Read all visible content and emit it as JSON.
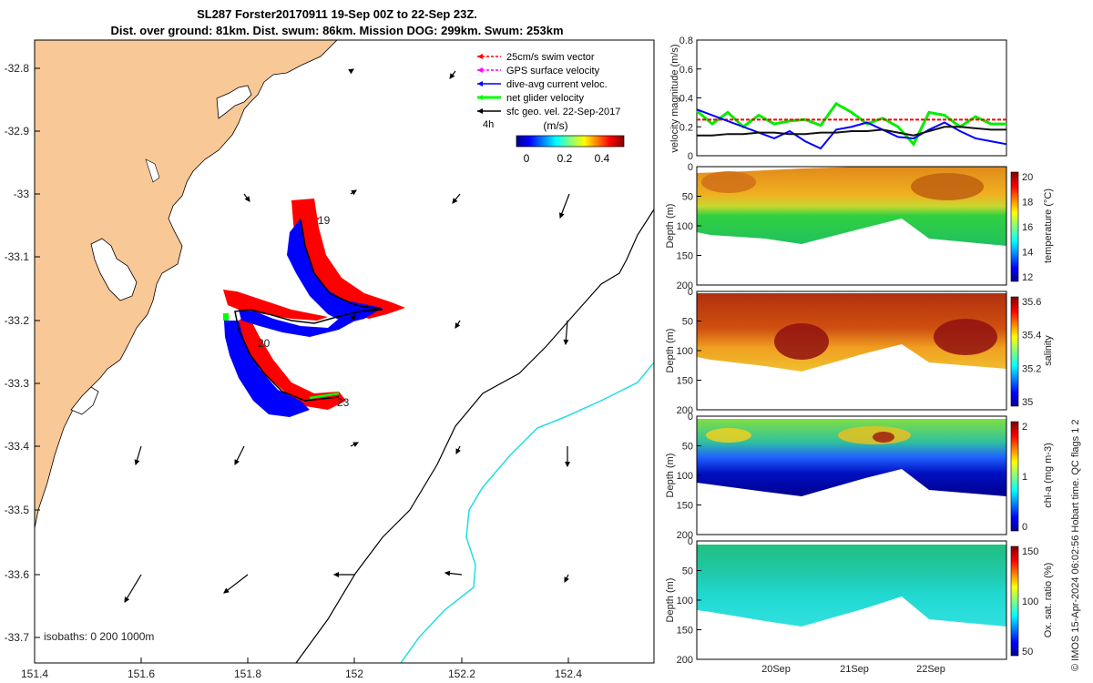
{
  "header": {
    "title_line1": "SL287 Forster20170911 19-Sep 00Z to 22-Sep 23Z.",
    "title_line2": "Dist. over ground: 81km. Dist. swum: 86km. Mission DOG: 299km. Swum: 253km"
  },
  "map": {
    "xticks": [
      "151.4",
      "151.6",
      "151.8",
      "152",
      "152.2",
      "152.4"
    ],
    "yticks": [
      "-32.8",
      "-32.9",
      "-33",
      "-33.1",
      "-33.2",
      "-33.3",
      "-33.4",
      "-33.5",
      "-33.6",
      "-33.7"
    ],
    "legend": [
      {
        "label": "25cm/s swim vector",
        "color": "#ff0000"
      },
      {
        "label": "GPS surface velocity",
        "color": "#ff00ff"
      },
      {
        "label": "dive-avg current veloc.",
        "color": "#0000ff"
      },
      {
        "label": "net glider velocity",
        "color": "#00ff00"
      },
      {
        "label": "sfc geo. vel. 22-Sep-2017",
        "color": "#000000"
      }
    ],
    "interval_label": "4h",
    "colorbar": {
      "title": "(m/s)",
      "ticks": [
        "0",
        "0.2",
        "0.4"
      ]
    },
    "track_labels": [
      "19",
      "20",
      "23"
    ],
    "isobaths_label": "isobaths: 0   200  1000m",
    "land_color": "#f9c897"
  },
  "chart_data": [
    {
      "type": "line",
      "title": "",
      "ylabel": "velocity magnitude (m/s)",
      "ylim": [
        0,
        0.8
      ],
      "yticks": [
        "0",
        "0.2",
        "0.4",
        "0.6",
        "0.8"
      ],
      "x": [
        0,
        0.05,
        0.1,
        0.15,
        0.2,
        0.25,
        0.3,
        0.35,
        0.4,
        0.45,
        0.5,
        0.55,
        0.6,
        0.65,
        0.7,
        0.75,
        0.8,
        0.85,
        0.9,
        0.95,
        1.0
      ],
      "series": [
        {
          "name": "",
          "color": "#00ee00",
          "values": [
            0.31,
            0.22,
            0.3,
            0.2,
            0.28,
            0.22,
            0.24,
            0.25,
            0.21,
            0.36,
            0.3,
            0.22,
            0.26,
            0.2,
            0.08,
            0.3,
            0.28,
            0.2,
            0.27,
            0.22,
            0.22
          ]
        },
        {
          "name": "",
          "color": "#ff0000",
          "values": [
            0.25,
            0.25,
            0.25,
            0.25,
            0.25,
            0.25,
            0.25,
            0.25,
            0.25,
            0.25,
            0.25,
            0.25,
            0.25,
            0.25,
            0.25,
            0.25,
            0.25,
            0.25,
            0.25,
            0.25,
            0.25
          ]
        },
        {
          "name": "",
          "color": "#0000ff",
          "values": [
            0.32,
            0.28,
            0.24,
            0.2,
            0.16,
            0.12,
            0.17,
            0.1,
            0.05,
            0.18,
            0.2,
            0.23,
            0.18,
            0.13,
            0.12,
            0.18,
            0.23,
            0.17,
            0.12,
            0.1,
            0.08
          ]
        },
        {
          "name": "",
          "color": "#111111",
          "values": [
            0.14,
            0.14,
            0.15,
            0.15,
            0.16,
            0.16,
            0.15,
            0.15,
            0.16,
            0.16,
            0.17,
            0.17,
            0.18,
            0.16,
            0.14,
            0.17,
            0.2,
            0.2,
            0.19,
            0.18,
            0.18
          ]
        }
      ]
    },
    {
      "type": "heatmap",
      "ylabel": "Depth (m)",
      "clabel": "temperature (°C)",
      "yticks": [
        "0",
        "50",
        "100",
        "150",
        "200"
      ],
      "cticks": [
        "12",
        "14",
        "16",
        "18",
        "20"
      ]
    },
    {
      "type": "heatmap",
      "ylabel": "Depth (m)",
      "clabel": "salinity",
      "yticks": [
        "0",
        "50",
        "100",
        "150",
        "200"
      ],
      "cticks": [
        "35",
        "35.2",
        "35.4",
        "35.6"
      ]
    },
    {
      "type": "heatmap",
      "ylabel": "Depth (m)",
      "clabel": "chl-a (mg m-3)",
      "yticks": [
        "0",
        "50",
        "100",
        "150",
        "200"
      ],
      "cticks": [
        "0",
        "1",
        "2"
      ]
    },
    {
      "type": "heatmap",
      "ylabel": "Depth (m)",
      "clabel": "Ox. sat. ratio (%)",
      "yticks": [
        "0",
        "50",
        "100",
        "150",
        "200"
      ],
      "cticks": [
        "50",
        "100",
        "150"
      ],
      "xticks": [
        "20Sep",
        "21Sep",
        "22Sep"
      ]
    }
  ],
  "footer": {
    "credit": "© IMOS 15-Apr-2024 06:02:56 Hobart time. QC flags 1  2"
  }
}
